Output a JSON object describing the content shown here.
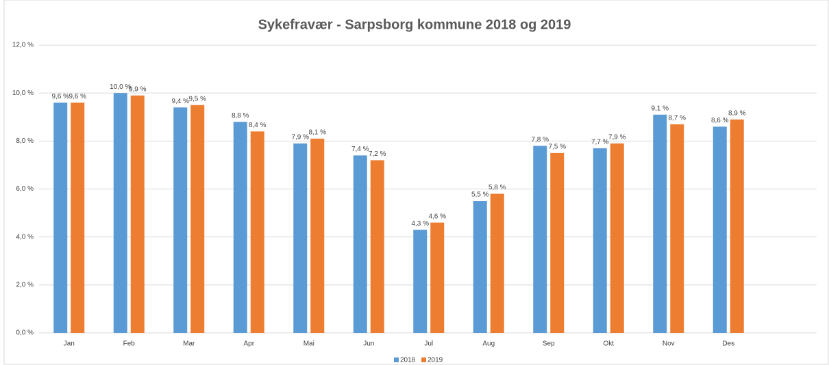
{
  "chart_data": {
    "type": "bar",
    "title": "Sykefravær - Sarpsborg kommune 2018 og 2019",
    "categories": [
      "Jan",
      "Feb",
      "Mar",
      "Apr",
      "Mai",
      "Jun",
      "Jul",
      "Aug",
      "Sep",
      "Okt",
      "Nov",
      "Des"
    ],
    "series": [
      {
        "name": "2018",
        "color": "#5b9bd5",
        "values": [
          9.6,
          10.0,
          9.4,
          8.8,
          7.9,
          7.4,
          4.3,
          5.5,
          7.8,
          7.7,
          9.1,
          8.6
        ],
        "value_labels": [
          "9,6 %",
          "10,0 %",
          "9,4 %",
          "8,8 %",
          "7,9 %",
          "7,4 %",
          "4,3 %",
          "5,5 %",
          "7,8 %",
          "7,7 %",
          "9,1 %",
          "8,6 %"
        ]
      },
      {
        "name": "2019",
        "color": "#ed7d31",
        "values": [
          9.6,
          9.9,
          9.5,
          8.4,
          8.1,
          7.2,
          4.6,
          5.8,
          7.5,
          7.9,
          8.7,
          8.9
        ],
        "value_labels": [
          "9,6 %",
          "9,9 %",
          "9,5 %",
          "8,4 %",
          "8,1 %",
          "7,2 %",
          "4,6 %",
          "5,8 %",
          "7,5 %",
          "7,9 %",
          "8,7 %",
          "8,9 %"
        ]
      }
    ],
    "ylim": [
      0,
      12
    ],
    "yticks": [
      {
        "value": 0,
        "label": "0,0 %"
      },
      {
        "value": 2,
        "label": "2,0 %"
      },
      {
        "value": 4,
        "label": "4,0 %"
      },
      {
        "value": 6,
        "label": "6,0 %"
      },
      {
        "value": 8,
        "label": "8,0 %"
      },
      {
        "value": 10,
        "label": "10,0 %"
      },
      {
        "value": 12,
        "label": "12,0 %"
      }
    ],
    "grid": true,
    "legend": "bottom"
  }
}
